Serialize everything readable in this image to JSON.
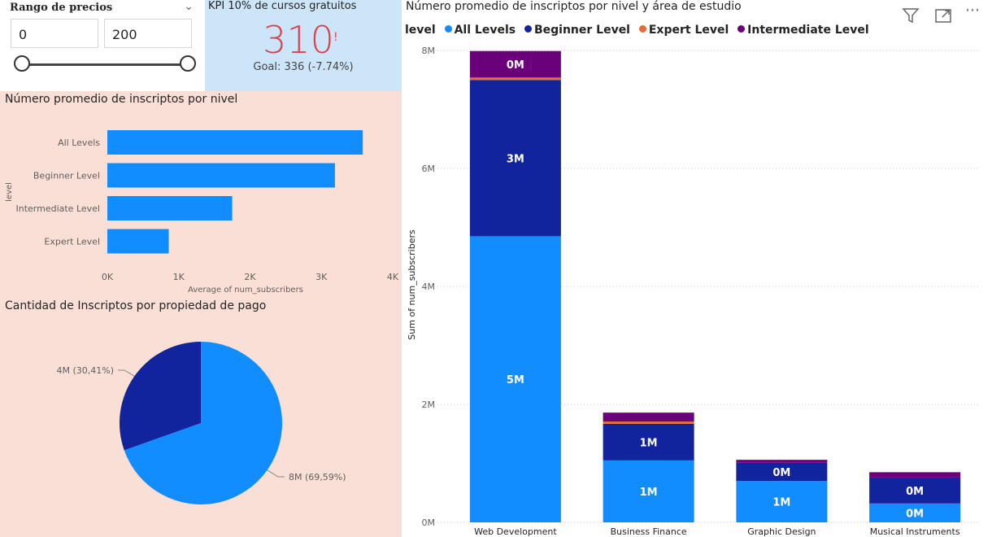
{
  "slicer": {
    "title": "Rango de precios",
    "min": "0",
    "max": "200"
  },
  "kpi": {
    "title": "KPI 10% de cursos gratuitos",
    "value": "310",
    "alert": "!",
    "goal": "Goal: 336 (-7.74%)"
  },
  "colors": {
    "all": "#118dff",
    "beginner": "#12239e",
    "expert": "#e66c37",
    "intermediate": "#6b007b"
  },
  "chart_data": [
    {
      "type": "bar",
      "orientation": "horizontal",
      "title": "Número promedio de inscriptos por nivel",
      "ylabel": "level",
      "xlabel": "Average of num_subscribers",
      "categories": [
        "All Levels",
        "Beginner Level",
        "Intermediate Level",
        "Expert Level"
      ],
      "values": [
        3580,
        3190,
        1750,
        860
      ],
      "xlim": [
        0,
        4000
      ],
      "ticks": [
        "0K",
        "1K",
        "2K",
        "3K",
        "4K"
      ]
    },
    {
      "type": "pie",
      "title": "Cantidad de Inscriptos por propiedad de pago",
      "slices": [
        {
          "label": "8M (69,59%)",
          "value": 69.59
        },
        {
          "label": "4M (30,41%)",
          "value": 30.41
        }
      ]
    },
    {
      "type": "bar",
      "stacked": true,
      "title": "Número promedio de inscriptos por nivel y área de estudio",
      "legend_title": "level",
      "xlabel": "",
      "ylabel": "Sum of num_subscribers",
      "categories": [
        "Web Development",
        "Business Finance",
        "Graphic Design",
        "Musical Instruments"
      ],
      "ylim": [
        0,
        8000000
      ],
      "ticks": [
        "0M",
        "2M",
        "4M",
        "6M",
        "8M"
      ],
      "series": [
        {
          "name": "All Levels",
          "values": [
            4850000,
            1050000,
            700000,
            320000
          ],
          "labels": [
            "5M",
            "1M",
            "1M",
            "0M"
          ]
        },
        {
          "name": "Beginner Level",
          "values": [
            2650000,
            620000,
            310000,
            440000
          ],
          "labels": [
            "3M",
            "1M",
            "0M",
            "0M"
          ]
        },
        {
          "name": "Expert Level",
          "values": [
            40000,
            40000,
            0,
            0
          ],
          "labels": [
            "",
            "",
            "",
            ""
          ]
        },
        {
          "name": "Intermediate Level",
          "values": [
            450000,
            150000,
            50000,
            90000
          ],
          "labels": [
            "0M",
            "",
            "",
            ""
          ]
        }
      ]
    }
  ]
}
